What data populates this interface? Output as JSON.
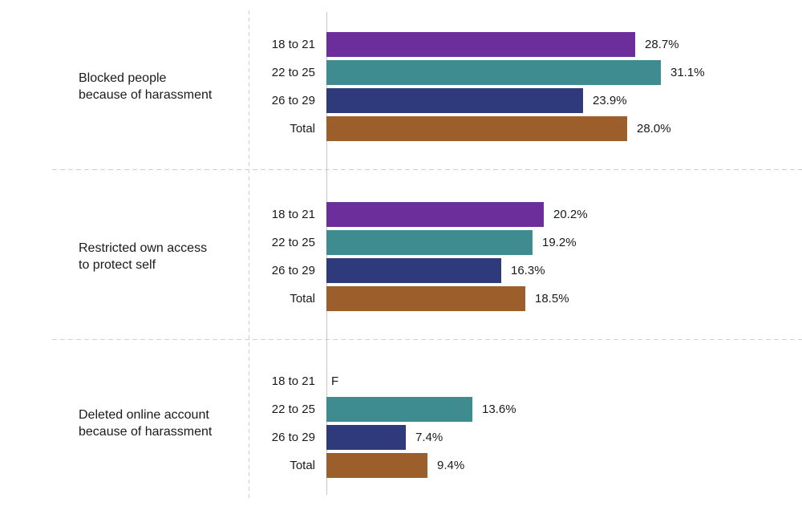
{
  "chart_data": {
    "type": "bar",
    "orientation": "horizontal",
    "value_suffix": "%",
    "xlim": [
      0,
      44
    ],
    "grid": "dashed facet separators, single light y-axis baseline, no x-axis ticks",
    "legend_position": "none (categories labeled per row)",
    "categories": [
      "18 to 21",
      "22 to 25",
      "26 to 29",
      "Total"
    ],
    "category_colors": [
      "#6b2e9b",
      "#3e8c8f",
      "#2e3a7c",
      "#9c5f2c"
    ],
    "suppressed_marker": "F",
    "groups": [
      {
        "label_lines": [
          "Blocked people",
          "because of harassment"
        ],
        "values": [
          28.7,
          31.1,
          23.9,
          28.0
        ],
        "labels": [
          "28.7%",
          "31.1%",
          "23.9%",
          "28.0%"
        ]
      },
      {
        "label_lines": [
          "Restricted own access",
          "to protect self"
        ],
        "values": [
          20.2,
          19.2,
          16.3,
          18.5
        ],
        "labels": [
          "20.2%",
          "19.2%",
          "16.3%",
          "18.5%"
        ]
      },
      {
        "label_lines": [
          "Deleted online account",
          "because of harassment"
        ],
        "values": [
          null,
          13.6,
          7.4,
          9.4
        ],
        "labels": [
          "F",
          "13.6%",
          "7.4%",
          "9.4%"
        ]
      }
    ]
  }
}
